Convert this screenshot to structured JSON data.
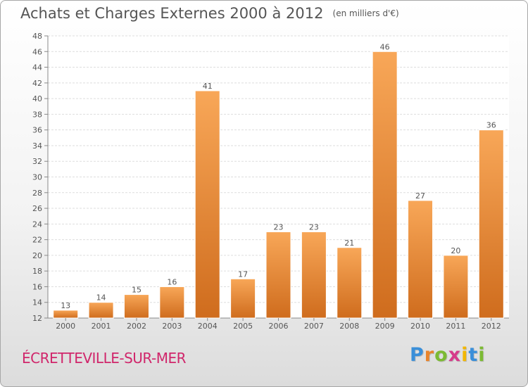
{
  "header": {
    "title": "Achats et Charges Externes 2000 à 2012",
    "unit": "(en milliers d'€)"
  },
  "commune": "ÉCRETTEVILLE-SUR-MER",
  "logo": {
    "letters": [
      "P",
      "r",
      "o",
      "x",
      "i",
      "t",
      "i"
    ],
    "colors": [
      "#3a8fd9",
      "#e8842c",
      "#7cba33",
      "#d63a8a",
      "#f2b705",
      "#3a8fd9",
      "#7cba33"
    ]
  },
  "colors": {
    "bar_light": "#f8a758",
    "bar_dark": "#cf6c1d",
    "grid": "#dddddd",
    "text": "#555555"
  },
  "chart_data": {
    "type": "bar",
    "title": "Achats et Charges Externes 2000 à 2012",
    "categories": [
      "2000",
      "2001",
      "2002",
      "2003",
      "2004",
      "2005",
      "2006",
      "2007",
      "2008",
      "2009",
      "2010",
      "2011",
      "2012"
    ],
    "values": [
      13,
      14,
      15,
      16,
      41,
      17,
      23,
      23,
      21,
      46,
      27,
      20,
      36
    ],
    "ylim": [
      12,
      48
    ],
    "yticks": [
      12,
      14,
      16,
      18,
      20,
      22,
      24,
      26,
      28,
      30,
      32,
      34,
      36,
      38,
      40,
      42,
      44,
      46,
      48
    ],
    "grid": true,
    "data_labels": true
  }
}
